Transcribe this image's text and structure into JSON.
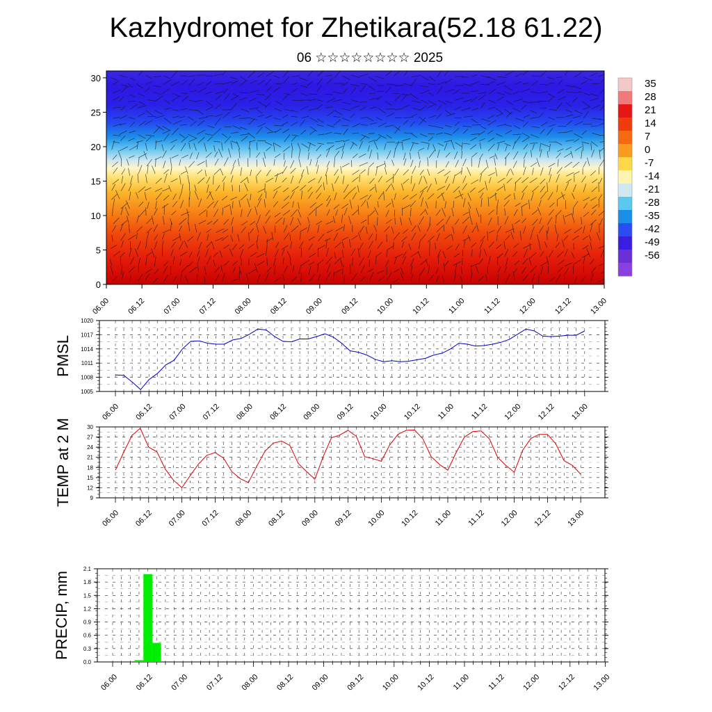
{
  "title": "Kazhydromet for Zhetikara(52.18 61.22)",
  "subtitle": "06 ☆☆☆☆☆☆☆☆ 2025",
  "time_ticks": [
    "06.00",
    "06.12",
    "07.00",
    "07.12",
    "08.00",
    "08.12",
    "09.00",
    "09.12",
    "10.00",
    "10.12",
    "11.00",
    "11.12",
    "12.00",
    "12.12",
    "13.00"
  ],
  "colorbar": {
    "labels": [
      "35",
      "28",
      "21",
      "14",
      "7",
      "0",
      "-7",
      "-14",
      "-21",
      "-28",
      "-35",
      "-42",
      "-49",
      "-56"
    ],
    "colors": [
      "#f5c8c8",
      "#f07a7a",
      "#e61616",
      "#f03c0c",
      "#f56a10",
      "#fa9a1e",
      "#ffd84a",
      "#fff4b0",
      "#cfe8f2",
      "#5cc8f0",
      "#1a8fe8",
      "#2a4cf0",
      "#3a1ee0",
      "#6a30d8",
      "#8a40e0"
    ]
  },
  "chart_data": [
    {
      "type": "heatmap",
      "title": "",
      "xlabel": "",
      "ylabel": "",
      "x": [
        "06.00",
        "06.12",
        "07.00",
        "07.12",
        "08.00",
        "08.12",
        "09.00",
        "09.12",
        "10.00",
        "10.12",
        "11.00",
        "11.12",
        "12.00",
        "12.12",
        "13.00"
      ],
      "yticks": [
        0,
        5,
        10,
        15,
        20,
        25,
        30
      ],
      "ylim": [
        0,
        31
      ],
      "value_range": [
        -56,
        35
      ],
      "description_of_field": [
        {
          "y": 0,
          "value": 32
        },
        {
          "y": 5,
          "value": 26
        },
        {
          "y": 10,
          "value": 18
        },
        {
          "y": 15,
          "value": 5
        },
        {
          "y": 17,
          "value": -8
        },
        {
          "y": 20,
          "value": -28
        },
        {
          "y": 23,
          "value": -45
        },
        {
          "y": 26,
          "value": -54
        },
        {
          "y": 30,
          "value": -52
        }
      ],
      "wind_barbs": true
    },
    {
      "type": "line",
      "ylabel": "PMSL",
      "ylim": [
        1005,
        1020
      ],
      "yticks": [
        "1005",
        "1008",
        "1011",
        "1014",
        "1017",
        "1020"
      ],
      "x": [
        "06.00",
        "06.03",
        "06.06",
        "06.09",
        "06.12",
        "06.15",
        "06.18",
        "06.21",
        "07.00",
        "07.03",
        "07.06",
        "07.09",
        "07.12",
        "07.15",
        "07.18",
        "07.21",
        "08.00",
        "08.03",
        "08.06",
        "08.09",
        "08.12",
        "08.15",
        "08.18",
        "08.21",
        "09.00",
        "09.03",
        "09.06",
        "09.09",
        "09.12",
        "09.15",
        "09.18",
        "09.21",
        "10.00",
        "10.03",
        "10.06",
        "10.09",
        "10.12",
        "10.15",
        "10.18",
        "10.21",
        "11.00",
        "11.03",
        "11.06",
        "11.09",
        "11.12",
        "11.15",
        "11.18",
        "11.21",
        "12.00",
        "12.03",
        "12.06",
        "12.09",
        "12.12",
        "12.15",
        "12.18",
        "12.21",
        "13.00"
      ],
      "series": [
        {
          "color": "#0000cc",
          "values": [
            1008.5,
            1008.4,
            1007.0,
            1005.4,
            1007.5,
            1008.8,
            1010.6,
            1011.6,
            1014.0,
            1015.6,
            1015.7,
            1015.2,
            1015.0,
            1015.0,
            1015.9,
            1016.2,
            1017.1,
            1018.2,
            1018.0,
            1016.6,
            1015.6,
            1015.5,
            1016.1,
            1016.1,
            1016.6,
            1017.2,
            1016.5,
            1015.2,
            1013.6,
            1013.3,
            1012.7,
            1011.8,
            1011.3,
            1011.5,
            1011.3,
            1011.4,
            1011.7,
            1012.0,
            1012.7,
            1013.1,
            1014.0,
            1015.2,
            1015.0,
            1014.6,
            1014.7,
            1015.0,
            1015.4,
            1016.0,
            1017.1,
            1018.2,
            1017.8,
            1016.7,
            1016.6,
            1016.7,
            1016.9,
            1016.9,
            1017.8
          ]
        }
      ]
    },
    {
      "type": "line",
      "ylabel": "TEMP at 2 M",
      "ylim": [
        9,
        30
      ],
      "yticks": [
        "9",
        "12",
        "15",
        "18",
        "21",
        "24",
        "27",
        "30"
      ],
      "x": [
        "06.00",
        "06.03",
        "06.06",
        "06.09",
        "06.12",
        "06.15",
        "06.18",
        "06.21",
        "07.00",
        "07.03",
        "07.06",
        "07.09",
        "07.12",
        "07.15",
        "07.18",
        "07.21",
        "08.00",
        "08.03",
        "08.06",
        "08.09",
        "08.12",
        "08.15",
        "08.18",
        "08.21",
        "09.00",
        "09.03",
        "09.06",
        "09.09",
        "09.12",
        "09.15",
        "09.18",
        "09.21",
        "10.00",
        "10.03",
        "10.06",
        "10.09",
        "10.12",
        "10.15",
        "10.18",
        "10.21",
        "11.00",
        "11.03",
        "11.06",
        "11.09",
        "11.12",
        "11.15",
        "11.18",
        "11.21",
        "12.00",
        "12.03",
        "12.06",
        "12.09",
        "12.12",
        "12.15",
        "12.18",
        "12.21",
        "13.00"
      ],
      "series": [
        {
          "color": "#dd0000",
          "values": [
            17.2,
            22.5,
            27.5,
            29.6,
            24.0,
            22.6,
            17.5,
            14.2,
            12.0,
            15.6,
            19.0,
            21.6,
            22.4,
            20.8,
            16.8,
            14.7,
            13.5,
            18.3,
            22.8,
            25.2,
            25.8,
            24.5,
            19.2,
            16.8,
            14.5,
            21.2,
            26.8,
            27.6,
            29.0,
            27.2,
            21.2,
            20.6,
            19.8,
            24.6,
            27.8,
            29.0,
            29.1,
            26.5,
            21.2,
            18.9,
            17.2,
            22.4,
            27.0,
            28.6,
            28.8,
            26.5,
            21.0,
            18.6,
            16.6,
            23.0,
            26.6,
            27.8,
            27.8,
            25.0,
            20.0,
            18.6,
            16.0
          ]
        }
      ]
    },
    {
      "type": "bar",
      "ylabel": "PRECIP, mm",
      "ylim": [
        0.0,
        2.1
      ],
      "yticks": [
        "0.0",
        "0.3",
        "0.6",
        "0.9",
        "1.2",
        "1.5",
        "1.8",
        "2.1"
      ],
      "x": [
        "06.00",
        "06.03",
        "06.06",
        "06.09",
        "06.12",
        "06.15",
        "06.18",
        "06.21",
        "07.00",
        "07.03",
        "07.06",
        "07.09",
        "07.12",
        "07.15",
        "07.18",
        "07.21",
        "08.00",
        "08.03",
        "08.06",
        "08.09",
        "08.12",
        "08.15",
        "08.18",
        "08.21",
        "09.00",
        "09.03",
        "09.06",
        "09.09",
        "09.12",
        "09.15",
        "09.18",
        "09.21",
        "10.00",
        "10.03",
        "10.06",
        "10.09",
        "10.12",
        "10.15",
        "10.18",
        "10.21",
        "11.00",
        "11.03",
        "11.06",
        "11.09",
        "11.12",
        "11.15",
        "11.18",
        "11.21",
        "12.00",
        "12.03",
        "12.06",
        "12.09",
        "12.12",
        "12.15",
        "12.18",
        "12.21",
        "13.00"
      ],
      "series": [
        {
          "color": "#00ee00",
          "values": [
            0,
            0,
            0,
            0.04,
            1.98,
            0.43,
            0,
            0,
            0,
            0,
            0,
            0,
            0,
            0,
            0,
            0,
            0,
            0,
            0,
            0,
            0,
            0,
            0,
            0,
            0,
            0,
            0,
            0,
            0,
            0,
            0,
            0,
            0,
            0,
            0.01,
            0,
            0,
            0,
            0,
            0,
            0,
            0,
            0,
            0,
            0,
            0,
            0,
            0,
            0,
            0,
            0,
            0,
            0,
            0,
            0,
            0,
            0
          ]
        }
      ]
    }
  ]
}
